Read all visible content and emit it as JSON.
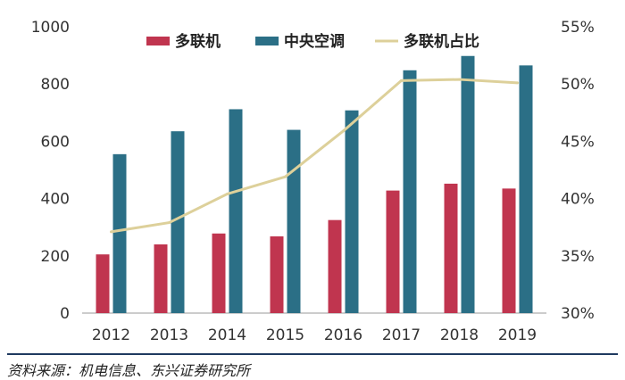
{
  "colors": {
    "multi_split": "#c0354f",
    "central_ac": "#2b6f86",
    "share_line": "#ddd09a",
    "axis": "#999999",
    "text": "#333333"
  },
  "chart_data": {
    "type": "bar",
    "categories": [
      "2012",
      "2013",
      "2014",
      "2015",
      "2016",
      "2017",
      "2018",
      "2019"
    ],
    "series": [
      {
        "name": "多联机",
        "type": "bar",
        "axis": "left",
        "values": [
          205,
          240,
          278,
          268,
          325,
          428,
          452,
          435
        ]
      },
      {
        "name": "中央空调",
        "type": "bar",
        "axis": "left",
        "values": [
          555,
          635,
          712,
          640,
          708,
          848,
          898,
          865
        ]
      },
      {
        "name": "多联机占比",
        "type": "line",
        "axis": "right",
        "values": [
          37.1,
          37.9,
          40.4,
          41.9,
          45.9,
          50.3,
          50.4,
          50.1
        ]
      }
    ],
    "y_left": {
      "min": 0,
      "max": 1000,
      "step": 200,
      "ticks": [
        "0",
        "200",
        "400",
        "600",
        "800",
        "1000"
      ]
    },
    "y_right": {
      "min": 30,
      "max": 55,
      "step": 5,
      "ticks": [
        "30%",
        "35%",
        "40%",
        "45%",
        "50%",
        "55%"
      ]
    },
    "legend": [
      "多联机",
      "中央空调",
      "多联机占比"
    ],
    "legend_position": "top-center"
  },
  "source": "资料来源：机电信息、东兴证券研究所"
}
